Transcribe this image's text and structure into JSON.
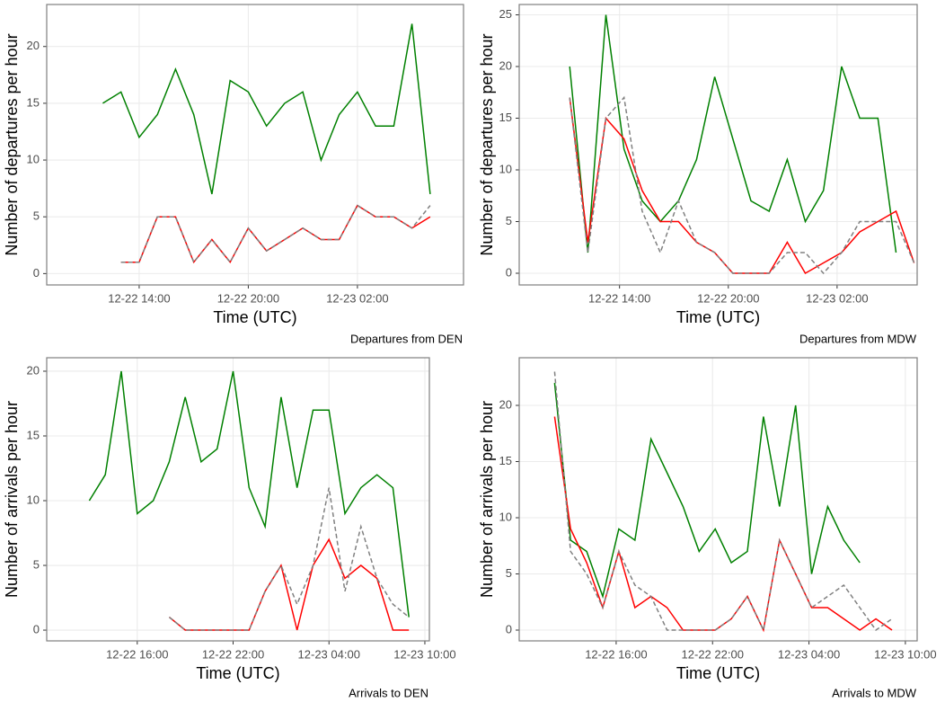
{
  "chart_data": [
    {
      "type": "line",
      "caption": "Departures from DEN",
      "xlabel": "Time (UTC)",
      "ylabel": "Number of departures per hour",
      "x": [
        "12-22 12:00",
        "12-22 13:00",
        "12-22 14:00",
        "12-22 15:00",
        "12-22 16:00",
        "12-22 17:00",
        "12-22 18:00",
        "12-22 19:00",
        "12-22 20:00",
        "12-22 21:00",
        "12-22 22:00",
        "12-22 23:00",
        "12-23 00:00",
        "12-23 01:00",
        "12-23 02:00",
        "12-23 03:00",
        "12-23 04:00",
        "12-23 05:00",
        "12-23 06:00"
      ],
      "xlim": [
        "12-22 08:55",
        "12-23 07:50"
      ],
      "xticks": [
        "12-22 14:00",
        "12-22 20:00",
        "12-23 02:00"
      ],
      "ylim": [
        -1.0,
        23.7
      ],
      "yticks": [
        0,
        5,
        10,
        15,
        20
      ],
      "grid": true,
      "series": [
        {
          "color": "#008000",
          "values": [
            15,
            16,
            12,
            14,
            18,
            14,
            7,
            17,
            16,
            13,
            15,
            16,
            10,
            14,
            16,
            13,
            13,
            22,
            7
          ]
        },
        {
          "color": "#ff0000",
          "values": [
            null,
            1,
            1,
            5,
            5,
            1,
            3,
            1,
            4,
            2,
            3,
            4,
            3,
            3,
            6,
            5,
            5,
            4,
            5
          ]
        },
        {
          "color": "#808080",
          "dash": true,
          "values": [
            null,
            1,
            1,
            5,
            5,
            1,
            3,
            1,
            4,
            2,
            3,
            4,
            3,
            3,
            6,
            5,
            5,
            4,
            6
          ]
        }
      ]
    },
    {
      "type": "line",
      "caption": "Departures from MDW",
      "xlabel": "Time (UTC)",
      "ylabel": "Number of departures per hour",
      "x": [
        "12-22 11:15",
        "12-22 12:15",
        "12-22 13:15",
        "12-22 14:15",
        "12-22 15:15",
        "12-22 16:15",
        "12-22 17:15",
        "12-22 18:15",
        "12-22 19:15",
        "12-22 20:15",
        "12-22 21:15",
        "12-22 22:15",
        "12-22 23:15",
        "12-23 00:15",
        "12-23 01:15",
        "12-23 02:15",
        "12-23 03:15",
        "12-23 04:15",
        "12-23 05:15",
        "12-23 06:15"
      ],
      "xlim": [
        "12-22 08:28",
        "12-23 06:25"
      ],
      "xticks": [
        "12-22 14:00",
        "12-22 20:00",
        "12-23 02:00"
      ],
      "ylim": [
        -1.13,
        26.0
      ],
      "yticks": [
        0,
        5,
        10,
        15,
        20,
        25
      ],
      "grid": true,
      "series": [
        {
          "color": "#008000",
          "values": [
            20,
            2,
            25,
            12,
            7,
            5,
            7,
            11,
            19,
            13,
            7,
            6,
            11,
            5,
            8,
            20,
            15,
            15,
            2,
            null
          ]
        },
        {
          "color": "#ff0000",
          "values": [
            17,
            3,
            15,
            13,
            8,
            5,
            5,
            3,
            2,
            0,
            0,
            0,
            3,
            0,
            1,
            2,
            4,
            5,
            6,
            1
          ]
        },
        {
          "color": "#808080",
          "dash": true,
          "values": [
            17,
            2,
            15,
            17,
            6,
            2,
            7,
            3,
            2,
            0,
            0,
            0,
            2,
            2,
            0,
            2,
            5,
            5,
            5,
            1
          ]
        }
      ]
    },
    {
      "type": "line",
      "caption": "Arrivals to DEN",
      "xlabel": "Time (UTC)",
      "ylabel": "Number of arrivals per hour",
      "x": [
        "12-22 13:00",
        "12-22 14:00",
        "12-22 15:00",
        "12-22 16:00",
        "12-22 17:00",
        "12-22 18:00",
        "12-22 19:00",
        "12-22 20:00",
        "12-22 21:00",
        "12-22 22:00",
        "12-22 23:00",
        "12-23 00:00",
        "12-23 01:00",
        "12-23 02:00",
        "12-23 03:00",
        "12-23 04:00",
        "12-23 05:00",
        "12-23 06:00",
        "12-23 07:00",
        "12-23 08:00",
        "12-23 09:00"
      ],
      "xlim": [
        "12-22 10:20",
        "12-23 10:17"
      ],
      "xticks": [
        "12-22 16:00",
        "12-22 22:00",
        "12-23 04:00",
        "12-23 10:00"
      ],
      "ylim": [
        -0.83,
        21.04
      ],
      "yticks": [
        0,
        5,
        10,
        15,
        20
      ],
      "grid": true,
      "series": [
        {
          "color": "#008000",
          "values": [
            10,
            12,
            20,
            9,
            10,
            13,
            18,
            13,
            14,
            20,
            11,
            8,
            18,
            11,
            17,
            17,
            9,
            11,
            12,
            11,
            1
          ]
        },
        {
          "color": "#ff0000",
          "values": [
            null,
            null,
            null,
            null,
            null,
            1,
            0,
            0,
            0,
            0,
            0,
            3,
            5,
            0,
            5,
            7,
            4,
            5,
            4,
            0,
            0
          ]
        },
        {
          "color": "#808080",
          "dash": true,
          "values": [
            null,
            null,
            null,
            null,
            null,
            1,
            0,
            0,
            0,
            0,
            0,
            3,
            5,
            2,
            5,
            11,
            3,
            8,
            4,
            2,
            1
          ]
        }
      ]
    },
    {
      "type": "line",
      "caption": "Arrivals to MDW",
      "xlabel": "Time (UTC)",
      "ylabel": "Number of arrivals per hour",
      "x": [
        "12-22 12:10",
        "12-22 13:10",
        "12-22 14:10",
        "12-22 15:10",
        "12-22 16:10",
        "12-22 17:10",
        "12-22 18:10",
        "12-22 19:10",
        "12-22 20:10",
        "12-22 21:10",
        "12-22 22:10",
        "12-22 23:10",
        "12-23 00:10",
        "12-23 01:10",
        "12-23 02:10",
        "12-23 03:10",
        "12-23 04:10",
        "12-23 05:10",
        "12-23 06:10",
        "12-23 07:10",
        "12-23 08:10",
        "12-23 09:10"
      ],
      "xlim": [
        "12-22 09:58",
        "12-23 10:44"
      ],
      "xticks": [
        "12-22 16:00",
        "12-22 22:00",
        "12-23 04:00",
        "12-23 10:00"
      ],
      "ylim": [
        -0.96,
        24.24
      ],
      "yticks": [
        0,
        5,
        10,
        15,
        20
      ],
      "grid": true,
      "series": [
        {
          "color": "#008000",
          "values": [
            22,
            8,
            7,
            3,
            9,
            8,
            17,
            14,
            11,
            7,
            9,
            6,
            7,
            19,
            11,
            20,
            5,
            11,
            8,
            6,
            null,
            null
          ]
        },
        {
          "color": "#ff0000",
          "values": [
            19,
            9,
            6,
            2,
            7,
            2,
            3,
            2,
            0,
            0,
            0,
            1,
            3,
            0,
            8,
            5,
            2,
            2,
            1,
            0,
            1,
            0
          ]
        },
        {
          "color": "#808080",
          "dash": true,
          "values": [
            23,
            7,
            5,
            2,
            7,
            4,
            3,
            0,
            0,
            0,
            0,
            1,
            3,
            0,
            8,
            5,
            2,
            3,
            4,
            2,
            0,
            1
          ]
        }
      ]
    }
  ]
}
